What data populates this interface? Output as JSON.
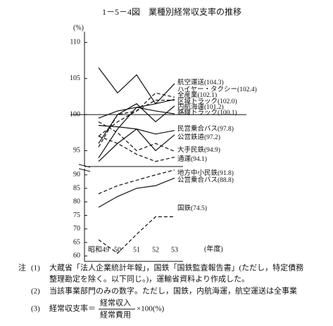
{
  "chart_data": [
    {
      "type": "line",
      "title": "1－5－4図　業種別経常収支率の推移",
      "y_unit": "(%)",
      "categories": [
        "昭和49",
        "50",
        "51",
        "52",
        "53"
      ],
      "x_label": "(年度)",
      "ylim": [
        92.8,
        111.5
      ],
      "yticks": [
        95,
        100,
        105,
        110
      ],
      "reference_line": 100,
      "series": [
        {
          "name": "航空運送(104.3)",
          "color": "#111",
          "dash": false,
          "values": [
            106.5,
            103,
            105.5,
            101.5,
            104.3
          ]
        },
        {
          "name": "ハイヤー・タクシー(102.4)",
          "color": "#111",
          "dash": true,
          "values": [
            95.5,
            100,
            100.5,
            103,
            102.4
          ]
        },
        {
          "name": "全産業(102.1)",
          "color": "#111",
          "dash": false,
          "values": [
            99.5,
            100.5,
            101,
            101.5,
            102.1
          ]
        },
        {
          "name": "区域トラック(102.0)",
          "color": "#111",
          "dash": true,
          "values": [
            97,
            99,
            100.5,
            102,
            102.0
          ]
        },
        {
          "name": "内航海運(101.2)",
          "color": "#111",
          "dash": false,
          "values": [
            96,
            100,
            101.5,
            99,
            101.2
          ]
        },
        {
          "name": "路線トラック(100.1)",
          "color": "#111",
          "dash": false,
          "values": [
            94,
            98,
            101,
            100.5,
            100.1
          ]
        },
        {
          "name": "民営乗合バス(97.8)",
          "color": "#111",
          "dash": false,
          "values": [
            98.5,
            98.3,
            98,
            97.3,
            97.8
          ]
        },
        {
          "name": "公営鉄道(97.2)",
          "color": "#111",
          "dash": false,
          "values": [
            93.5,
            96,
            98,
            95,
            97.2
          ]
        },
        {
          "name": "大手民鉄(94.9)",
          "color": "#111",
          "dash": true,
          "values": [
            99,
            97.5,
            95,
            96,
            94.9
          ]
        },
        {
          "name": "通運(94.1)",
          "color": "#111",
          "dash": true,
          "values": [
            97,
            96,
            94.5,
            93.5,
            94.1
          ]
        }
      ]
    },
    {
      "type": "line",
      "ylim": [
        58,
        92.3
      ],
      "yticks": [
        60,
        65,
        70,
        75,
        80,
        85,
        90
      ],
      "series": [
        {
          "name": "地方中小民鉄(91.8)",
          "color": "#111",
          "dash": true,
          "values": [
            83,
            86,
            88,
            90,
            91.8
          ]
        },
        {
          "name": "公営乗合バス(88.8)",
          "color": "#111",
          "dash": false,
          "values": [
            78,
            82,
            85,
            86,
            88.8
          ]
        },
        {
          "name": "国鉄(74.5)",
          "color": "#111",
          "dash": true,
          "values": [
            66,
            61,
            68,
            74.5,
            74.5
          ]
        }
      ]
    }
  ],
  "notes": {
    "head": "注",
    "items": [
      {
        "num": "(1)",
        "text": "大蔵省「法人企業統計年報」，国鉄「国鉄監査報告書」(ただし，特定債務",
        "text2": "整理勘定を除く。以下同じ。)，運輸省資料より作成した。"
      },
      {
        "num": "(2)",
        "text": "当該事業部門のみの数字。ただし，国鉄，内航海運，航空運送は全事業"
      },
      {
        "num": "(3)",
        "text": "経常収支率＝",
        "numerator": "経常収入",
        "denominator": "経常費用",
        "tail": "×100(%)"
      }
    ]
  }
}
